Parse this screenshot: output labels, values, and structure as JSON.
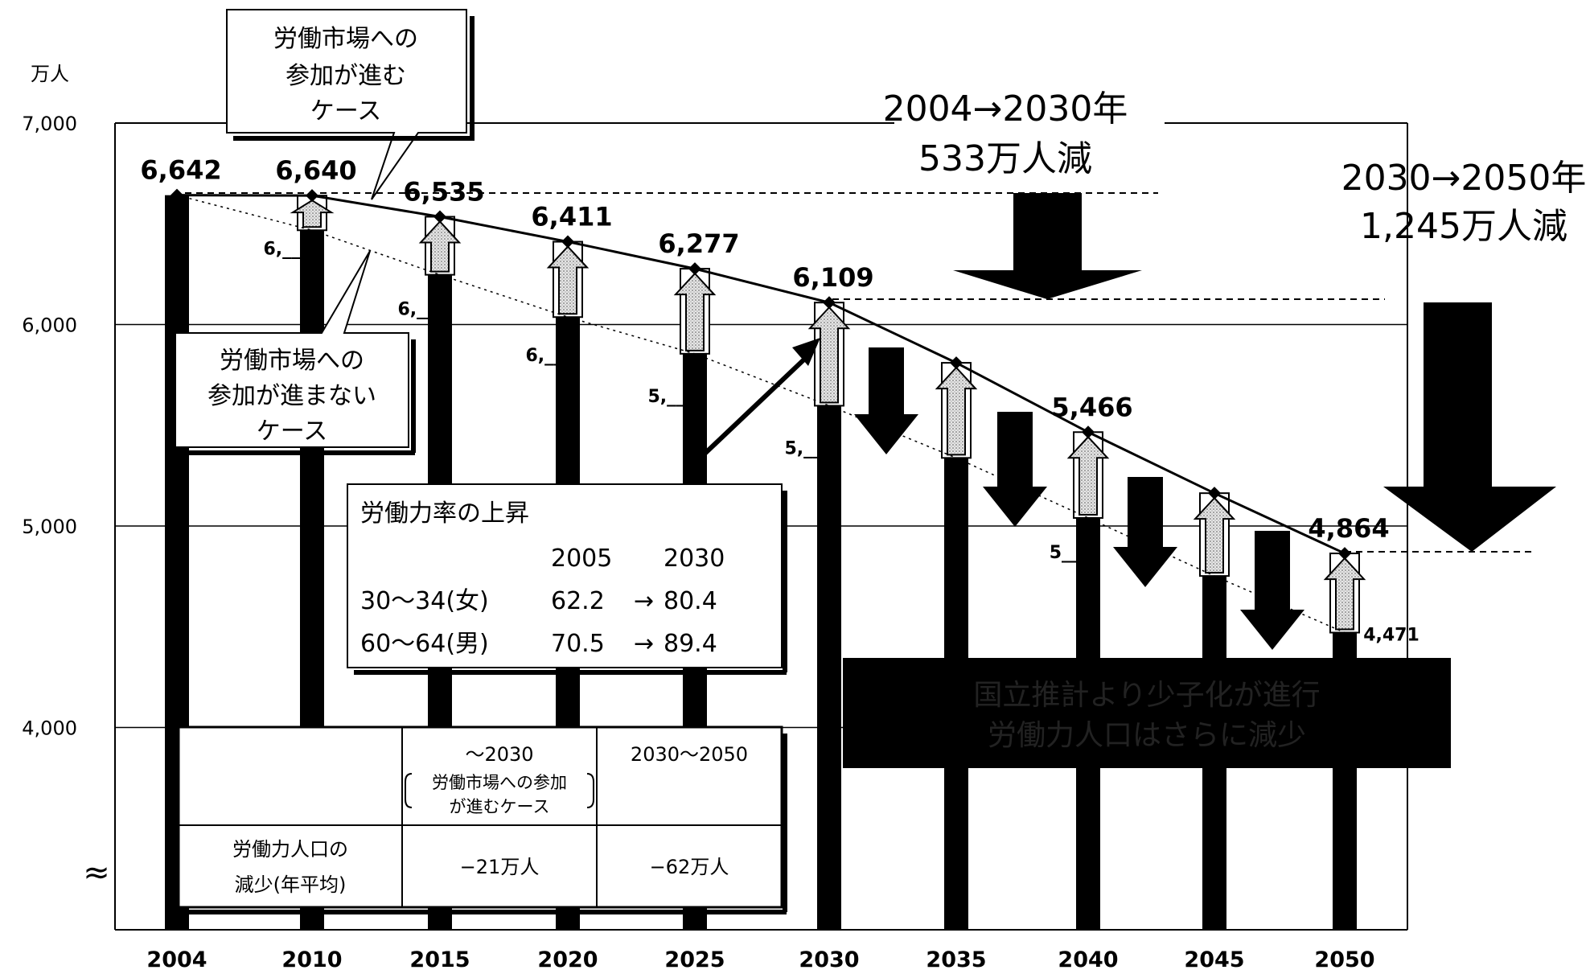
{
  "chart_data": {
    "type": "bar",
    "title": "",
    "y_unit": "万人",
    "ylim": [
      3000,
      7000
    ],
    "y_ticks": [
      "7,000",
      "6,000",
      "5,000",
      "4,000"
    ],
    "y_break_symbol": "≈",
    "categories": [
      "2004",
      "2010",
      "2015",
      "2020",
      "2025",
      "2030",
      "2035",
      "2040",
      "2045",
      "2050"
    ],
    "series": [
      {
        "name": "労働市場への参加が進まないケース",
        "values": [
          6642,
          6468,
          6247,
          6037,
          5855,
          5597,
          5338,
          5040,
          4752,
          4471
        ]
      },
      {
        "name": "労働市場への参加が進むケース",
        "values": [
          6642,
          6640,
          6535,
          6411,
          6277,
          6109,
          5810,
          5466,
          5163,
          4864
        ]
      }
    ],
    "upper_labels": [
      "6,642",
      "6,640",
      "6,535",
      "6,411",
      "6,277",
      "6,109",
      "",
      "5,466",
      "",
      "4,864"
    ],
    "lower_labels": [
      "",
      "6,__8",
      "6,__7",
      "6,__7",
      "5,__5",
      "5,__7",
      "",
      "5__4",
      "",
      "4,471"
    ]
  },
  "callouts": {
    "participation_advance": [
      "労働市場への",
      "参加が進む",
      "ケース"
    ],
    "participation_no_advance": [
      "労働市場への",
      "参加が進まない",
      "ケース"
    ]
  },
  "annotations": {
    "decline_2004_2030": [
      "2004→2030年",
      "533万人減"
    ],
    "decline_2030_2050": [
      "2030→2050年",
      "1,245万人減"
    ]
  },
  "rate_box": {
    "title": "労働力率の上昇",
    "years": [
      "2005",
      "2030"
    ],
    "rows": [
      {
        "label": "30〜34(女)",
        "from": "62.2",
        "arrow": "→",
        "to": "80.4"
      },
      {
        "label": "60〜64(男)",
        "from": "70.5",
        "arrow": "→",
        "to": "89.4"
      }
    ]
  },
  "table": {
    "col1_line1": "〜2030",
    "col1_line2": "労働市場への参加",
    "col1_line3": "が進むケース",
    "col2": "2030〜2050",
    "row_label_1": "労働力人口の",
    "row_label_2": "減少(年平均)",
    "val1": "−21万人",
    "val2": "−62万人"
  },
  "banner": [
    "国立推計より少子化が進行",
    "労働力人口はさらに減少"
  ],
  "colors": {
    "bar": "#000000",
    "arrow_fill": "#c8c8c8",
    "banner_bg": "#000000"
  }
}
